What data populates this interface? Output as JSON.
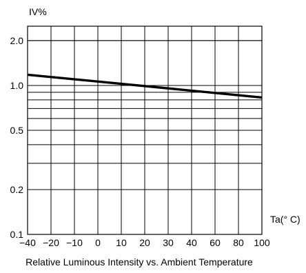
{
  "chart_data": {
    "type": "line",
    "title": "Relative Luminous Intensity vs. Ambient Temperature",
    "ylabel": "IV%",
    "xlabel": "Ta(° C)",
    "y_scale": "log",
    "ylim": [
      0.1,
      2.5
    ],
    "y_ticks": [
      0.1,
      0.2,
      0.5,
      1.0,
      2.0
    ],
    "y_tick_labels": [
      "0.1",
      "0.2",
      "0.5",
      "1.0",
      "2.0"
    ],
    "x_tick_labels": [
      "−40",
      "−20",
      "−10",
      "0",
      "10",
      "20",
      "30",
      "40",
      "60",
      "80",
      "100"
    ],
    "grid": true,
    "series": [
      {
        "x": [
          -40,
          100
        ],
        "y": [
          1.18,
          0.83
        ]
      }
    ]
  }
}
